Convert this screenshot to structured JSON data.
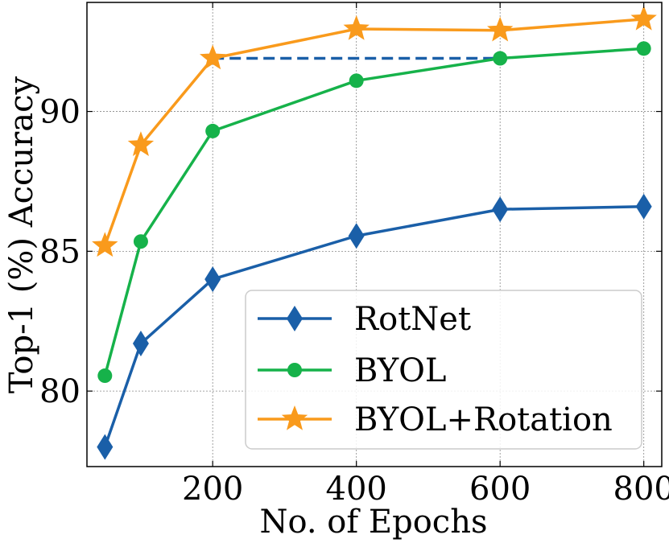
{
  "chart_data": {
    "type": "line",
    "title": "",
    "xlabel": "No. of Epochs",
    "ylabel": "Top-1 (%) Accuracy",
    "xlim": [
      25,
      825
    ],
    "ylim": [
      77.3,
      93.9
    ],
    "xticks": [
      200,
      400,
      600,
      800
    ],
    "yticks": [
      80,
      85,
      90
    ],
    "grid": true,
    "legend_position": "lower-right",
    "series": [
      {
        "name": "RotNet",
        "marker": "diamond",
        "color": "#1a5fa8",
        "x": [
          50,
          100,
          200,
          400,
          600,
          800
        ],
        "y": [
          78.0,
          81.7,
          84.0,
          85.55,
          86.5,
          86.6
        ]
      },
      {
        "name": "BYOL",
        "marker": "circle",
        "color": "#16b24a",
        "x": [
          50,
          100,
          200,
          400,
          600,
          800
        ],
        "y": [
          80.55,
          85.35,
          89.3,
          91.1,
          91.9,
          92.25
        ]
      },
      {
        "name": "BYOL+Rotation",
        "marker": "star",
        "color": "#f99a1c",
        "x": [
          50,
          100,
          200,
          400,
          600,
          800
        ],
        "y": [
          85.2,
          88.8,
          91.9,
          92.95,
          92.9,
          93.3
        ]
      }
    ],
    "annotations": [
      {
        "type": "dashed-line",
        "color": "#1a5fa8",
        "from": [
          200,
          91.9
        ],
        "to": [
          600,
          91.9
        ],
        "meaning": "BYOL+Rotation at 200 epochs matches BYOL at 600 epochs"
      }
    ]
  }
}
